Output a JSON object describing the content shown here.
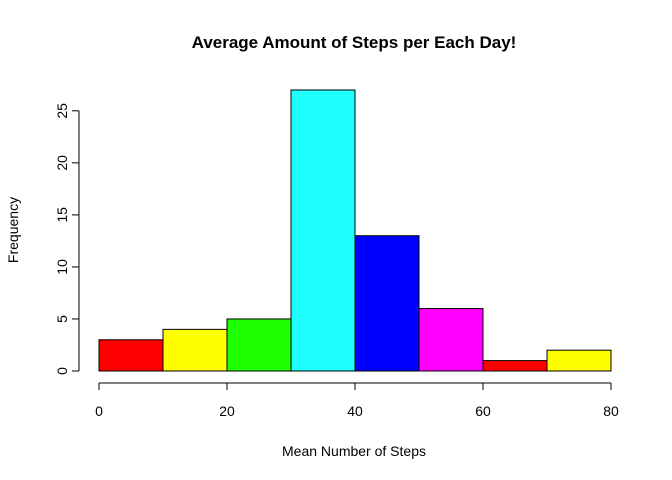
{
  "chart_data": {
    "type": "histogram",
    "title": "Average Amount of Steps per Each Day!",
    "xlabel": "Mean Number of Steps",
    "ylabel": "Frequency",
    "bins": [
      {
        "start": 0,
        "end": 10,
        "count": 3,
        "color": "#FF0000"
      },
      {
        "start": 10,
        "end": 20,
        "count": 4,
        "color": "#FFFF00"
      },
      {
        "start": 20,
        "end": 30,
        "count": 5,
        "color": "#1EFF00"
      },
      {
        "start": 30,
        "end": 40,
        "count": 27,
        "color": "#1EFFFF"
      },
      {
        "start": 40,
        "end": 50,
        "count": 13,
        "color": "#0000FF"
      },
      {
        "start": 50,
        "end": 60,
        "count": 6,
        "color": "#FF00FF"
      },
      {
        "start": 60,
        "end": 70,
        "count": 1,
        "color": "#FF0000"
      },
      {
        "start": 70,
        "end": 80,
        "count": 2,
        "color": "#FFFF00"
      }
    ],
    "xlim": [
      0,
      80
    ],
    "ylim": [
      0,
      27
    ],
    "xticks": [
      0,
      20,
      40,
      60,
      80
    ],
    "yticks": [
      0,
      5,
      10,
      15,
      20,
      25
    ],
    "grid": false,
    "legend": "none"
  }
}
